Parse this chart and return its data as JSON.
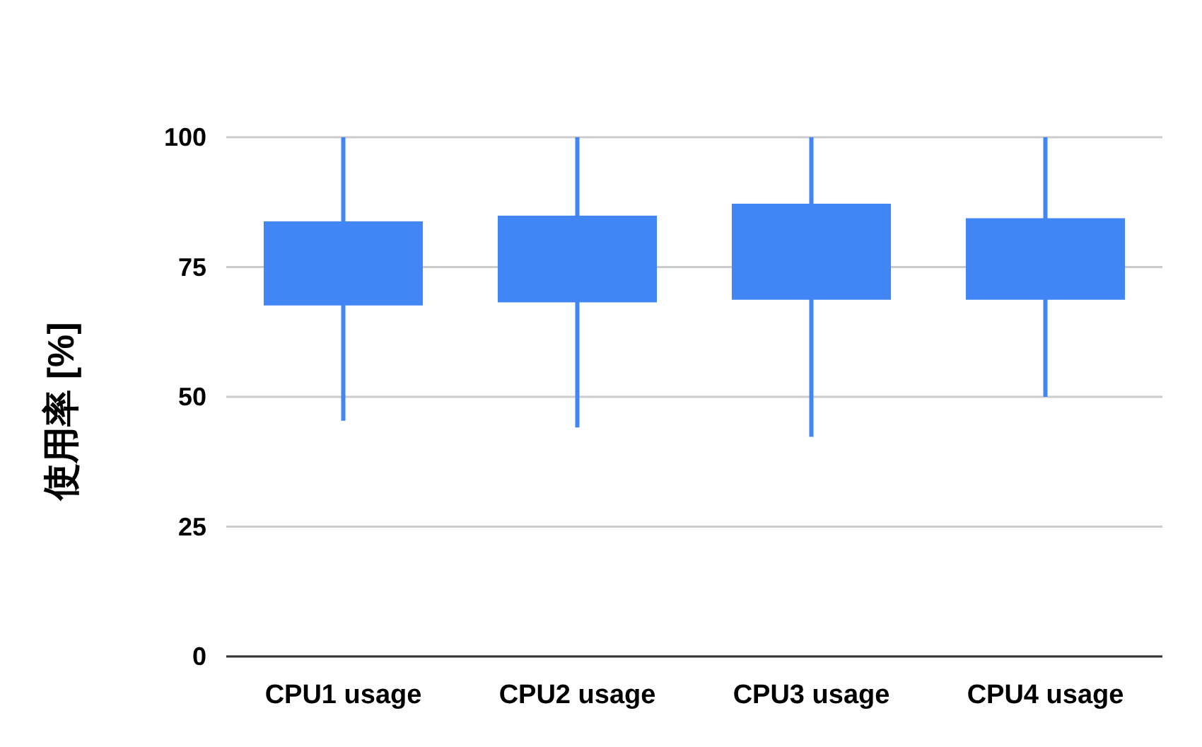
{
  "chart_data": {
    "type": "candlestick",
    "ylabel": "使用率 [%]",
    "categories": [
      "CPU1 usage",
      "CPU2 usage",
      "CPU3 usage",
      "CPU4 usage"
    ],
    "ohlc": [
      [
        67.6,
        100,
        45.4,
        83.8
      ],
      [
        68.2,
        100,
        44.1,
        84.9
      ],
      [
        68.7,
        100,
        42.3,
        87.2
      ],
      [
        68.7,
        100,
        50,
        84.4
      ]
    ],
    "color": "#4285f4",
    "ylim": [
      0,
      100
    ],
    "yticks": [
      0,
      25,
      50,
      75,
      100
    ],
    "grid": "y"
  }
}
